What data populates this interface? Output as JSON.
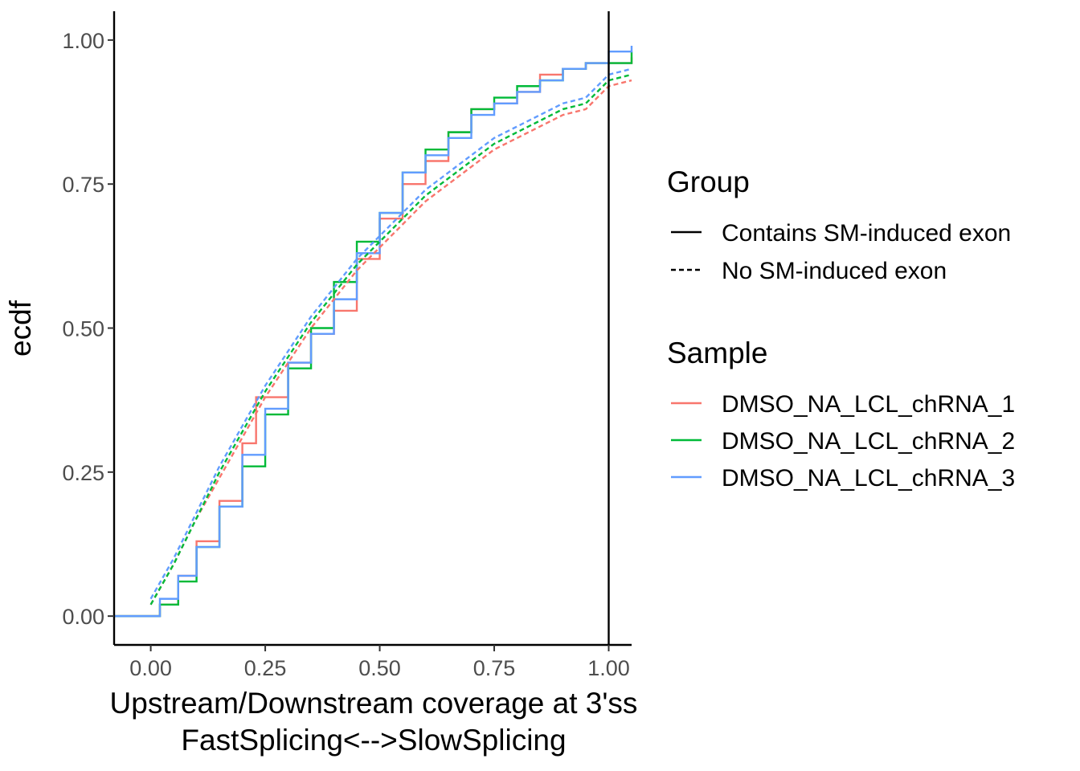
{
  "chart_data": {
    "type": "line",
    "title": "",
    "xlabel": [
      "Upstream/Downstream coverage at 3'ss",
      "FastSplicing<-->SlowSplicing"
    ],
    "ylabel": "ecdf",
    "xlim": [
      -0.08,
      1.05
    ],
    "ylim": [
      -0.05,
      1.05
    ],
    "x_ticks": [
      0,
      0.25,
      0.5,
      0.75,
      1
    ],
    "x_tick_labels": [
      "0.00",
      "0.25",
      "0.50",
      "0.75",
      "1.00"
    ],
    "y_ticks": [
      0,
      0.25,
      0.5,
      0.75,
      1
    ],
    "y_tick_labels": [
      "0.00",
      "0.25",
      "0.50",
      "0.75",
      "1.00"
    ],
    "reference_line_x": 1.0,
    "grid": false,
    "legend_position": "right",
    "legends": [
      {
        "title": "Group",
        "entries": [
          {
            "label": "Contains SM-induced exon",
            "linetype": "solid"
          },
          {
            "label": "No SM-induced exon",
            "linetype": "dashed"
          }
        ]
      },
      {
        "title": "Sample",
        "entries": [
          {
            "label": "DMSO_NA_LCL_chRNA_1",
            "color": "#F8766D"
          },
          {
            "label": "DMSO_NA_LCL_chRNA_2",
            "color": "#00BA38"
          },
          {
            "label": "DMSO_NA_LCL_chRNA_3",
            "color": "#619CFF"
          }
        ]
      }
    ],
    "series": [
      {
        "sample": "DMSO_NA_LCL_chRNA_1",
        "group": "Contains SM-induced exon",
        "color": "#F8766D",
        "linetype": "solid",
        "x": [
          -0.08,
          0.0,
          0.02,
          0.06,
          0.1,
          0.15,
          0.2,
          0.23,
          0.3,
          0.35,
          0.4,
          0.45,
          0.5,
          0.55,
          0.6,
          0.65,
          0.7,
          0.75,
          0.8,
          0.85,
          0.9,
          0.95,
          1.0,
          1.05
        ],
        "y": [
          0.0,
          0.0,
          0.02,
          0.07,
          0.13,
          0.2,
          0.3,
          0.38,
          0.44,
          0.49,
          0.53,
          0.62,
          0.69,
          0.75,
          0.79,
          0.84,
          0.88,
          0.89,
          0.91,
          0.94,
          0.95,
          0.96,
          0.96,
          0.97
        ]
      },
      {
        "sample": "DMSO_NA_LCL_chRNA_2",
        "group": "Contains SM-induced exon",
        "color": "#00BA38",
        "linetype": "solid",
        "x": [
          -0.08,
          0.0,
          0.02,
          0.06,
          0.1,
          0.15,
          0.2,
          0.25,
          0.3,
          0.35,
          0.4,
          0.45,
          0.5,
          0.55,
          0.6,
          0.65,
          0.7,
          0.75,
          0.8,
          0.85,
          0.9,
          0.95,
          1.0,
          1.05
        ],
        "y": [
          0.0,
          0.0,
          0.02,
          0.06,
          0.12,
          0.19,
          0.26,
          0.35,
          0.43,
          0.5,
          0.58,
          0.65,
          0.7,
          0.77,
          0.81,
          0.84,
          0.88,
          0.9,
          0.92,
          0.93,
          0.95,
          0.96,
          0.96,
          0.98
        ]
      },
      {
        "sample": "DMSO_NA_LCL_chRNA_3",
        "group": "Contains SM-induced exon",
        "color": "#619CFF",
        "linetype": "solid",
        "x": [
          -0.08,
          0.0,
          0.02,
          0.06,
          0.1,
          0.15,
          0.2,
          0.25,
          0.3,
          0.35,
          0.4,
          0.45,
          0.5,
          0.55,
          0.6,
          0.65,
          0.7,
          0.75,
          0.8,
          0.85,
          0.9,
          0.95,
          1.0,
          1.05
        ],
        "y": [
          0.0,
          0.0,
          0.03,
          0.07,
          0.12,
          0.19,
          0.28,
          0.36,
          0.44,
          0.49,
          0.55,
          0.63,
          0.7,
          0.77,
          0.8,
          0.83,
          0.87,
          0.89,
          0.91,
          0.93,
          0.95,
          0.96,
          0.98,
          0.99
        ]
      },
      {
        "sample": "DMSO_NA_LCL_chRNA_1",
        "group": "No SM-induced exon",
        "color": "#F8766D",
        "linetype": "dashed",
        "x": [
          0.0,
          0.05,
          0.1,
          0.15,
          0.2,
          0.25,
          0.3,
          0.35,
          0.4,
          0.45,
          0.5,
          0.55,
          0.6,
          0.65,
          0.7,
          0.75,
          0.8,
          0.85,
          0.9,
          0.95,
          1.0,
          1.05
        ],
        "y": [
          0.02,
          0.09,
          0.17,
          0.24,
          0.31,
          0.38,
          0.44,
          0.5,
          0.55,
          0.6,
          0.64,
          0.68,
          0.72,
          0.75,
          0.78,
          0.81,
          0.83,
          0.85,
          0.87,
          0.88,
          0.92,
          0.93
        ]
      },
      {
        "sample": "DMSO_NA_LCL_chRNA_2",
        "group": "No SM-induced exon",
        "color": "#00BA38",
        "linetype": "dashed",
        "x": [
          0.0,
          0.05,
          0.1,
          0.15,
          0.2,
          0.25,
          0.3,
          0.35,
          0.4,
          0.45,
          0.5,
          0.55,
          0.6,
          0.65,
          0.7,
          0.75,
          0.8,
          0.85,
          0.9,
          0.95,
          1.0,
          1.05
        ],
        "y": [
          0.02,
          0.09,
          0.17,
          0.25,
          0.32,
          0.39,
          0.45,
          0.51,
          0.56,
          0.61,
          0.65,
          0.69,
          0.73,
          0.76,
          0.79,
          0.82,
          0.84,
          0.86,
          0.88,
          0.89,
          0.93,
          0.94
        ]
      },
      {
        "sample": "DMSO_NA_LCL_chRNA_3",
        "group": "No SM-induced exon",
        "color": "#619CFF",
        "linetype": "dashed",
        "x": [
          0.0,
          0.05,
          0.1,
          0.15,
          0.2,
          0.25,
          0.3,
          0.35,
          0.4,
          0.45,
          0.5,
          0.55,
          0.6,
          0.65,
          0.7,
          0.75,
          0.8,
          0.85,
          0.9,
          0.95,
          1.0,
          1.05
        ],
        "y": [
          0.03,
          0.1,
          0.18,
          0.26,
          0.33,
          0.4,
          0.46,
          0.52,
          0.57,
          0.62,
          0.66,
          0.7,
          0.74,
          0.77,
          0.8,
          0.83,
          0.85,
          0.87,
          0.89,
          0.9,
          0.94,
          0.95
        ]
      }
    ]
  }
}
